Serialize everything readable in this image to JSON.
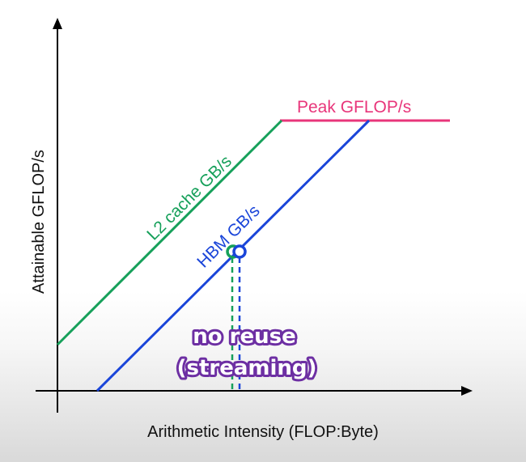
{
  "diagram": {
    "y_axis_label": "Attainable GFLOP/s",
    "x_axis_label": "Arithmetic Intensity (FLOP:Byte)",
    "lines": [
      {
        "name": "Peak GFLOP/s",
        "color": "#e8357a"
      },
      {
        "name": "L2 cache GB/s",
        "color": "#16a05a"
      },
      {
        "name": "HBM GB/s",
        "color": "#1a45d9"
      }
    ],
    "annotation": {
      "line1": "no reuse",
      "line2": "(streaming)",
      "color": "#6d2fa3"
    },
    "axis_color": "#000000"
  }
}
